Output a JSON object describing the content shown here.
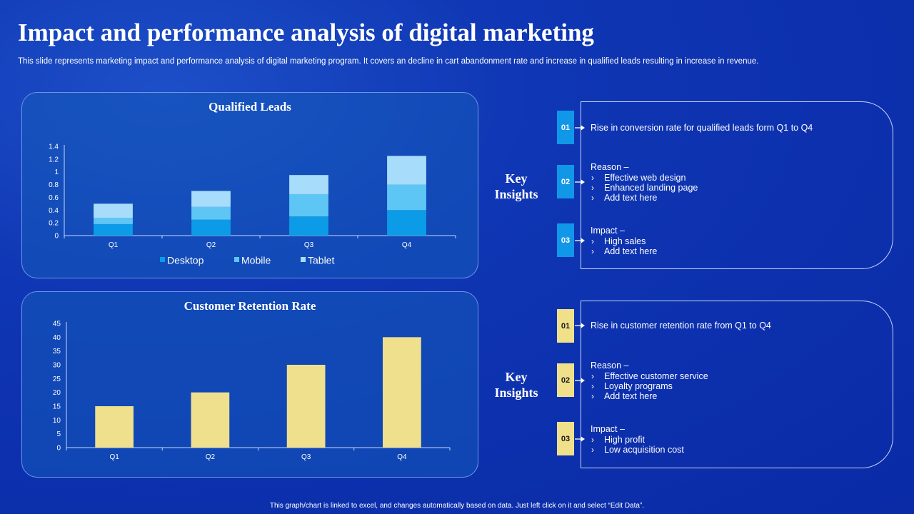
{
  "header": {
    "title": "Impact and performance analysis of digital marketing",
    "subtitle": "This slide represents marketing impact and performance analysis of digital marketing program. It covers an decline in cart abandonment rate and increase in qualified leads resulting in increase in revenue."
  },
  "colors": {
    "desktop": "#0c9be6",
    "mobile": "#5ec6f5",
    "tablet": "#a7ddfa",
    "retention_bar": "#efe08e",
    "badge_blue": "#1197e8",
    "badge_yellow": "#f0e08a"
  },
  "chart_data": [
    {
      "type": "bar",
      "stacked": true,
      "title": "Qualified Leads",
      "categories": [
        "Q1",
        "Q2",
        "Q3",
        "Q4"
      ],
      "series": [
        {
          "name": "Desktop",
          "values": [
            0.18,
            0.25,
            0.3,
            0.4
          ]
        },
        {
          "name": "Mobile",
          "values": [
            0.1,
            0.2,
            0.35,
            0.4
          ]
        },
        {
          "name": "Tablet",
          "values": [
            0.22,
            0.25,
            0.3,
            0.45
          ]
        }
      ],
      "ylim": [
        0,
        1.4
      ],
      "yticks": [
        0,
        0.2,
        0.4,
        0.6,
        0.8,
        1,
        1.2,
        1.4
      ],
      "ytick_labels": [
        "0",
        "0.2",
        "0.4",
        "0.6",
        "0.8",
        "1",
        "1.2",
        "1.4"
      ],
      "legend": "bottom"
    },
    {
      "type": "bar",
      "title": "Customer Retention Rate",
      "categories": [
        "Q1",
        "Q2",
        "Q3",
        "Q4"
      ],
      "values": [
        15,
        20,
        30,
        40
      ],
      "ylim": [
        0,
        45
      ],
      "yticks": [
        0,
        5,
        10,
        15,
        20,
        25,
        30,
        35,
        40,
        45
      ],
      "ytick_labels": [
        "0",
        "5",
        "10",
        "15",
        "20",
        "25",
        "30",
        "35",
        "40",
        "45"
      ]
    }
  ],
  "insights": [
    {
      "key_label_1": "Key",
      "key_label_2": "Insights",
      "items": [
        {
          "num": "01",
          "heading": "Rise in conversion  rate for qualified  leads form Q1 to Q4",
          "bullets": []
        },
        {
          "num": "02",
          "heading": "Reason –",
          "bullets": [
            "Effective web design",
            "Enhanced landing page",
            "Add text here"
          ]
        },
        {
          "num": "03",
          "heading": "Impact –",
          "bullets": [
            "High sales",
            "Add text here"
          ]
        }
      ]
    },
    {
      "key_label_1": "Key",
      "key_label_2": "Insights",
      "items": [
        {
          "num": "01",
          "heading": "Rise in customer retention rate from  Q1 to Q4",
          "bullets": []
        },
        {
          "num": "02",
          "heading": "Reason –",
          "bullets": [
            "Effective customer service",
            "Loyalty programs",
            "Add text here"
          ]
        },
        {
          "num": "03",
          "heading": "Impact –",
          "bullets": [
            "High profit",
            "Low acquisition cost"
          ]
        }
      ]
    }
  ],
  "footer": {
    "note": "This graph/chart is linked to excel, and changes automatically based on data. Just left click on it and select “Edit Data”."
  }
}
